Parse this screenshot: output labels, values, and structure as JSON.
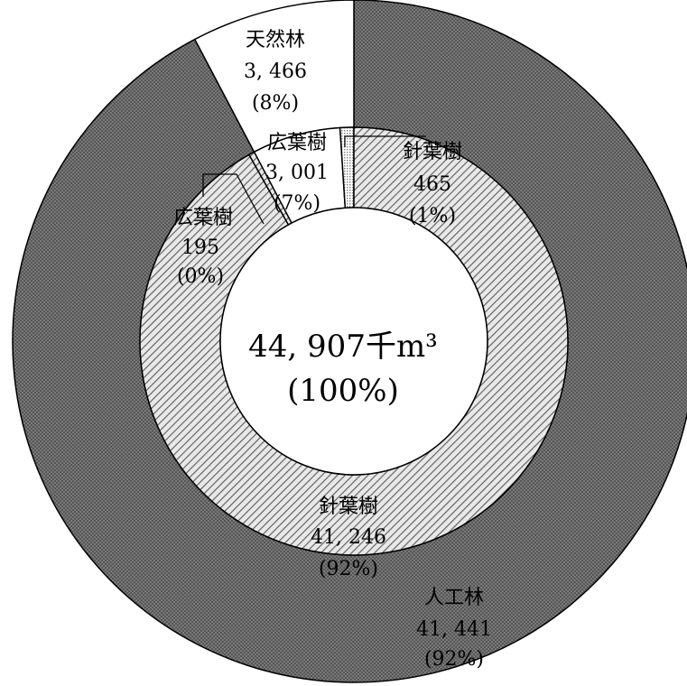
{
  "chart_data": {
    "type": "pie",
    "total": {
      "value": "44, 907千m³",
      "pct": "(100%)"
    },
    "outer_ring": [
      {
        "name": "人工林",
        "value": 41441,
        "label": "41, 441",
        "pct": "(92%)",
        "fill": "dark-crosshatch"
      },
      {
        "name": "天然林",
        "value": 3466,
        "label": "3, 466",
        "pct": "(8%)",
        "fill": "white"
      }
    ],
    "inner_ring": [
      {
        "name": "針葉樹",
        "parent": "人工林",
        "value": 41246,
        "label": "41, 246",
        "pct": "(92%)",
        "fill": "diagonal-hatch"
      },
      {
        "name": "広葉樹",
        "parent": "人工林",
        "value": 195,
        "label": "195",
        "pct": "(0%)",
        "fill": "diagonal-hatch"
      },
      {
        "name": "広葉樹",
        "parent": "天然林",
        "value": 3001,
        "label": "3, 001",
        "pct": "(7%)",
        "fill": "white"
      },
      {
        "name": "針葉樹",
        "parent": "天然林",
        "value": 465,
        "label": "465",
        "pct": "(1%)",
        "fill": "light-dots"
      }
    ]
  },
  "colors": {
    "outline": "#000000",
    "dark_hatch": "#6e6e6e",
    "light_hatch": "#d9d9d9",
    "background": "#ffffff"
  }
}
